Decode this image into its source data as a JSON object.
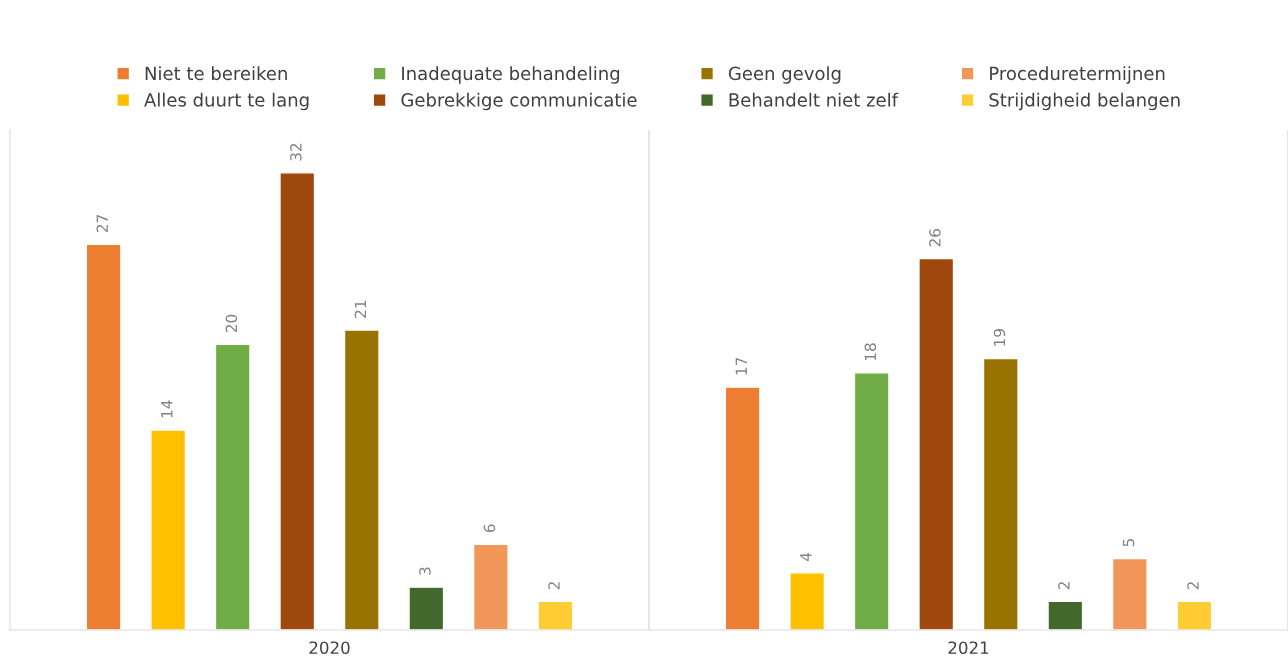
{
  "chart_data": {
    "type": "bar",
    "categories": [
      "2020",
      "2021"
    ],
    "series": [
      {
        "name": "Niet te bereiken",
        "color": "#ed7d31",
        "values": [
          27,
          17
        ]
      },
      {
        "name": "Alles duurt te lang",
        "color": "#ffc000",
        "values": [
          14,
          4
        ]
      },
      {
        "name": "Inadequate behandeling",
        "color": "#70ad47",
        "values": [
          20,
          18
        ]
      },
      {
        "name": "Gebrekkige communicatie",
        "color": "#9e480e",
        "values": [
          32,
          26
        ]
      },
      {
        "name": "Geen gevolg",
        "color": "#997300",
        "values": [
          21,
          19
        ]
      },
      {
        "name": "Behandelt niet zelf",
        "color": "#43682b",
        "values": [
          3,
          2
        ]
      },
      {
        "name": "Proceduretermijnen",
        "color": "#f1975a",
        "values": [
          6,
          5
        ]
      },
      {
        "name": "Strijdigheid belangen",
        "color": "#ffcd33",
        "values": [
          2,
          2
        ]
      }
    ],
    "ylim": [
      0,
      35
    ],
    "tick_labels": "x",
    "data_labels": true,
    "legend": "top",
    "grid": "x"
  }
}
